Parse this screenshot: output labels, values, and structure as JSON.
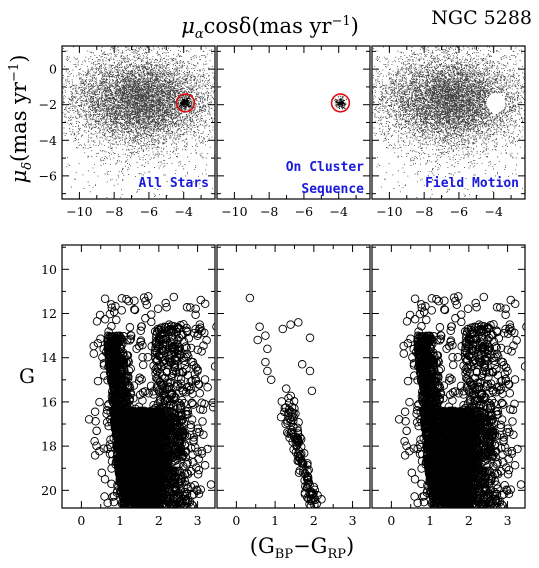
{
  "figure": {
    "title": "NGC 5288",
    "pm_xlabel": "μαcosδ(mas yr⁻¹)",
    "pm_xlabel_parts": {
      "mu": "μ",
      "sub": "α",
      "rest": "cosδ(mas yr",
      "exp": "−1",
      "close": ")"
    },
    "pm_ylabel_parts": {
      "mu": "μ",
      "sub": "δ",
      "rest": "(mas yr",
      "exp": "−1",
      "close": ")"
    },
    "cmd_ylabel": "G",
    "cmd_xlabel_parts": {
      "open": "(G",
      "sub1": "BP",
      "minus": "−G",
      "sub2": "RP",
      "close": ")"
    }
  },
  "chart_data": [
    {
      "type": "scatter",
      "panel": "proper-motion",
      "label": "All Stars",
      "xlim": [
        -11,
        -2.2
      ],
      "ylim": [
        -7.3,
        1.3
      ],
      "xticks": [
        -10,
        -8,
        -6,
        -4
      ],
      "yticks": [
        -6,
        -4,
        -2,
        0
      ],
      "field_center": [
        -6.5,
        -1.8
      ],
      "field_sigma": [
        1.7,
        1.1
      ],
      "field_points": 9000,
      "cluster_center": [
        -3.9,
        -1.9
      ],
      "cluster_points": 180,
      "selection_circle": {
        "center": [
          -3.9,
          -1.9
        ],
        "radius": 0.5,
        "color": "#e01010"
      }
    },
    {
      "type": "scatter",
      "panel": "proper-motion",
      "label": "On Cluster\nSequence",
      "label_lines": [
        "On Cluster",
        "Sequence"
      ],
      "xlim": [
        -11,
        -2.2
      ],
      "ylim": [
        -7.3,
        1.3
      ],
      "xticks": [
        -10,
        -8,
        -6,
        -4
      ],
      "yticks": [
        -6,
        -4,
        -2,
        0
      ],
      "cluster_center": [
        -3.9,
        -1.9
      ],
      "cluster_points": 150,
      "selection_circle": {
        "center": [
          -3.9,
          -1.9
        ],
        "radius": 0.5,
        "color": "#e01010"
      }
    },
    {
      "type": "scatter",
      "panel": "proper-motion",
      "label": "Field Motion",
      "xlim": [
        -11,
        -2.2
      ],
      "ylim": [
        -7.3,
        1.3
      ],
      "xticks": [
        -10,
        -8,
        -6,
        -4
      ],
      "yticks": [
        -6,
        -4,
        -2,
        0
      ],
      "field_center": [
        -6.5,
        -1.8
      ],
      "field_sigma": [
        1.7,
        1.1
      ],
      "field_points": 9000,
      "excluded_circle": {
        "center": [
          -3.9,
          -1.9
        ],
        "radius": 0.55
      }
    },
    {
      "type": "scatter",
      "panel": "cmd",
      "subset": "all",
      "xlim": [
        -0.5,
        3.45
      ],
      "ylim": [
        20.8,
        8.9
      ],
      "xticks": [
        0,
        1,
        2,
        3
      ],
      "yticks": [
        10,
        12,
        14,
        16,
        18,
        20
      ],
      "points": 3200
    },
    {
      "type": "scatter",
      "panel": "cmd",
      "subset": "cluster",
      "xlim": [
        -0.5,
        3.45
      ],
      "ylim": [
        20.8,
        8.9
      ],
      "xticks": [
        0,
        1,
        2,
        3
      ],
      "yticks": [
        10,
        12,
        14,
        16,
        18,
        20
      ],
      "sequence": [
        [
          1.3,
          15.8
        ],
        [
          1.45,
          17.0
        ],
        [
          1.6,
          18.0
        ],
        [
          1.75,
          19.0
        ],
        [
          1.9,
          20.0
        ],
        [
          1.95,
          20.6
        ]
      ],
      "bright_points": [
        [
          0.35,
          11.3
        ],
        [
          0.6,
          12.6
        ],
        [
          0.75,
          13.0
        ],
        [
          1.2,
          12.7
        ],
        [
          1.4,
          12.5
        ],
        [
          1.6,
          12.4
        ],
        [
          1.9,
          13.1
        ],
        [
          0.8,
          13.6
        ],
        [
          0.55,
          13.2
        ],
        [
          0.75,
          14.2
        ],
        [
          0.8,
          14.6
        ],
        [
          0.9,
          15.0
        ],
        [
          1.7,
          14.3
        ],
        [
          1.9,
          14.6
        ],
        [
          1.95,
          15.5
        ]
      ],
      "points": 130
    },
    {
      "type": "scatter",
      "panel": "cmd",
      "subset": "field",
      "xlim": [
        -0.5,
        3.45
      ],
      "ylim": [
        20.8,
        8.9
      ],
      "xticks": [
        0,
        1,
        2,
        3
      ],
      "yticks": [
        10,
        12,
        14,
        16,
        18,
        20
      ],
      "points": 3100
    }
  ]
}
